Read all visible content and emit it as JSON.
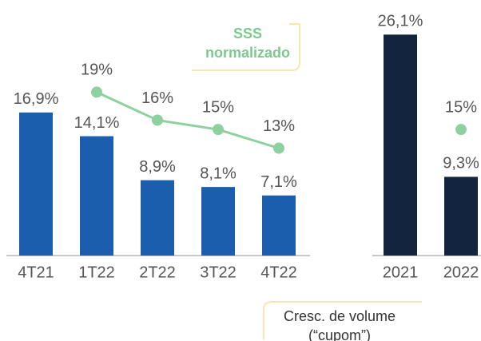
{
  "chart_data": [
    {
      "type": "bar",
      "categories": [
        "4T21",
        "1T22",
        "2T22",
        "3T22",
        "4T22"
      ],
      "ylim": [
        0,
        30
      ],
      "y2lim": [
        1.5,
        28.7
      ],
      "series": [
        {
          "type": "bar",
          "name": "Cresc. de volume (“cupom”)",
          "color": "#1b5ead",
          "values": [
            16.9,
            14.1,
            8.9,
            8.1,
            7.1
          ],
          "value_labels": [
            "16,9%",
            "14,1%",
            "8,9%",
            "8,1%",
            "7,1%"
          ]
        },
        {
          "type": "line",
          "axis": "y2",
          "name": "SSS normalizado",
          "color": "#8fd19e",
          "values": [
            null,
            19,
            16,
            15,
            13
          ],
          "value_labels": [
            null,
            "19%",
            "16%",
            "15%",
            "13%"
          ]
        }
      ]
    },
    {
      "type": "bar",
      "categories": [
        "2021",
        "2022"
      ],
      "ylim": [
        0,
        30
      ],
      "y2lim": [
        1.5,
        28.7
      ],
      "series": [
        {
          "type": "bar",
          "color": "#13243f",
          "values": [
            26.1,
            9.3
          ],
          "value_labels": [
            "26,1%",
            "9,3%"
          ]
        },
        {
          "type": "line",
          "axis": "y2",
          "color": "#8fd19e",
          "values": [
            null,
            15
          ],
          "value_labels": [
            null,
            "15%"
          ]
        }
      ]
    }
  ]
}
